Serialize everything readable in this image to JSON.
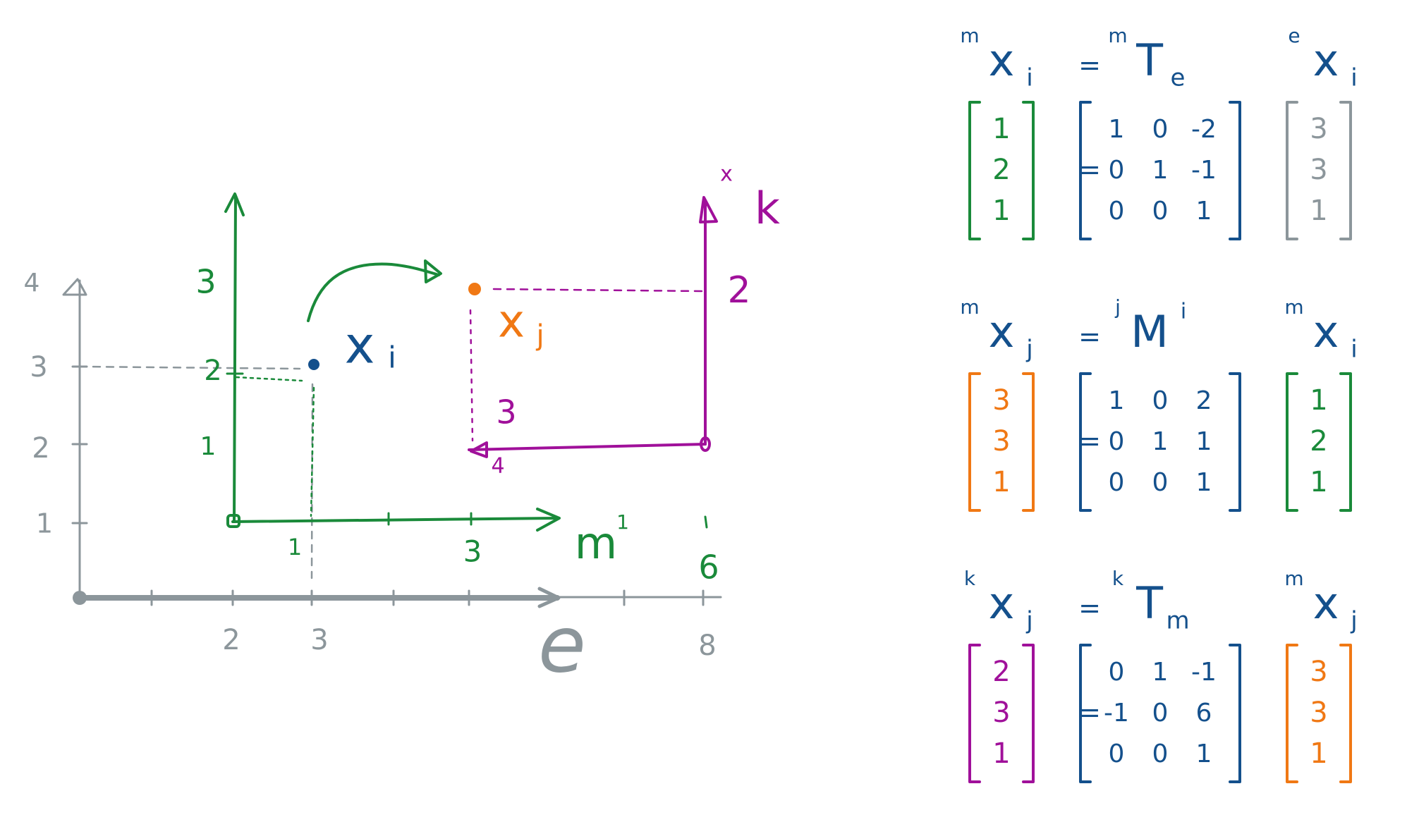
{
  "colors": {
    "gray": "#8c969b",
    "green": "#1a8a3a",
    "blue": "#14508c",
    "magenta": "#a0109a",
    "orange": "#f07814"
  },
  "e_frame": {
    "axis_label": "e",
    "x_ticks": [
      "2",
      "3",
      "8"
    ],
    "y_ticks": [
      "1",
      "2",
      "3",
      "4"
    ]
  },
  "m_frame": {
    "axis_label": "m",
    "axis_label_sup": "1",
    "x_ticks": [
      "1",
      "3",
      "6"
    ],
    "y_ticks": [
      "1",
      "2",
      "3"
    ]
  },
  "k_frame": {
    "axis_label": "k",
    "axis_label_sup": "x",
    "x_tick": "4",
    "y_ticks": [
      "3",
      "2"
    ]
  },
  "points": {
    "xi": {
      "label": "x",
      "sub": "i"
    },
    "xj": {
      "label": "x",
      "sub": "j"
    }
  },
  "equations": [
    {
      "lhs": {
        "pre": "m",
        "sym": "x",
        "sub": "i"
      },
      "op": {
        "pre": "m",
        "sym": "T",
        "sub": "e"
      },
      "rhs": {
        "pre": "e",
        "sym": "x",
        "sub": "i"
      },
      "result": [
        "1",
        "2",
        "1"
      ],
      "matrix": [
        [
          "1",
          "0",
          "-2"
        ],
        [
          "0",
          "1",
          "-1"
        ],
        [
          "0",
          "0",
          "1"
        ]
      ],
      "vector": [
        "3",
        "3",
        "1"
      ]
    },
    {
      "lhs": {
        "pre": "m",
        "sym": "x",
        "sub": "j"
      },
      "op": {
        "pre": "j",
        "sym": "M",
        "sup": "i"
      },
      "rhs": {
        "pre": "m",
        "sym": "x",
        "sub": "i"
      },
      "result": [
        "3",
        "3",
        "1"
      ],
      "matrix": [
        [
          "1",
          "0",
          "2"
        ],
        [
          "0",
          "1",
          "1"
        ],
        [
          "0",
          "0",
          "1"
        ]
      ],
      "vector": [
        "1",
        "2",
        "1"
      ]
    },
    {
      "lhs": {
        "pre": "k",
        "sym": "x",
        "sub": "j"
      },
      "op": {
        "pre": "k",
        "sym": "T",
        "sub": "m"
      },
      "rhs": {
        "pre": "m",
        "sym": "x",
        "sub": "j"
      },
      "result": [
        "2",
        "3",
        "1"
      ],
      "matrix": [
        [
          "0",
          "1",
          "-1"
        ],
        [
          "-1",
          "0",
          "6"
        ],
        [
          "0",
          "0",
          "1"
        ]
      ],
      "vector": [
        "3",
        "3",
        "1"
      ]
    }
  ],
  "equals_sign": "="
}
